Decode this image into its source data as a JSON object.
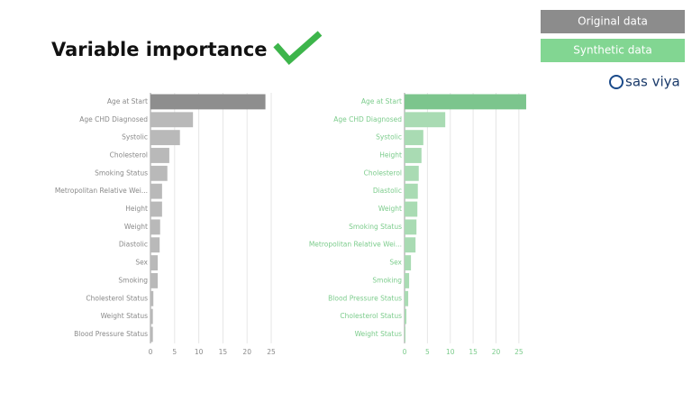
{
  "title": "Variable importance",
  "legend": [
    {
      "label": "Original data",
      "color": "#8c8c8c"
    },
    {
      "label": "Synthetic data",
      "color": "#82d692"
    }
  ],
  "logo": "sas viya",
  "chart_data": [
    {
      "type": "bar",
      "orientation": "horizontal",
      "categories": [
        "Age at Start",
        "Age CHD Diagnosed",
        "Systolic",
        "Cholesterol",
        "Smoking Status",
        "Metropolitan Relative Wei...",
        "Height",
        "Weight",
        "Diastolic",
        "Sex",
        "Smoking",
        "Cholesterol Status",
        "Weight Status",
        "Blood Pressure Status"
      ],
      "values": [
        23.8,
        8.8,
        6.1,
        3.9,
        3.5,
        2.4,
        2.4,
        2.0,
        1.9,
        1.5,
        1.5,
        0.6,
        0.5,
        0.5
      ],
      "colors": [
        "#8e8e8e",
        "#b9b9b9",
        "#b9b9b9",
        "#b9b9b9",
        "#b9b9b9",
        "#b9b9b9",
        "#b9b9b9",
        "#b9b9b9",
        "#b9b9b9",
        "#b9b9b9",
        "#b9b9b9",
        "#b9b9b9",
        "#b9b9b9",
        "#b9b9b9"
      ],
      "xlim": [
        0,
        25
      ],
      "xticks": [
        0,
        5,
        10,
        15,
        20,
        25
      ],
      "grid": true
    },
    {
      "type": "bar",
      "orientation": "horizontal",
      "categories": [
        "Age at Start",
        "Age CHD Diagnosed",
        "Systolic",
        "Height",
        "Cholesterol",
        "Diastolic",
        "Weight",
        "Smoking Status",
        "Metropolitan Relative Wei...",
        "Sex",
        "Smoking",
        "Blood Pressure Status",
        "Cholesterol Status",
        "Weight Status"
      ],
      "values": [
        26.6,
        8.9,
        4.1,
        3.7,
        3.1,
        2.9,
        2.8,
        2.6,
        2.4,
        1.4,
        1.0,
        0.8,
        0.4,
        0.2
      ],
      "colors": [
        "#7cc58d",
        "#a9dbb3",
        "#a9dbb3",
        "#a9dbb3",
        "#a9dbb3",
        "#a9dbb3",
        "#a9dbb3",
        "#a9dbb3",
        "#a9dbb3",
        "#a9dbb3",
        "#a9dbb3",
        "#a9dbb3",
        "#a9dbb3",
        "#a9dbb3"
      ],
      "xlim": [
        0,
        27
      ],
      "xticks": [
        0,
        5,
        10,
        15,
        20,
        25
      ],
      "grid": true
    }
  ]
}
